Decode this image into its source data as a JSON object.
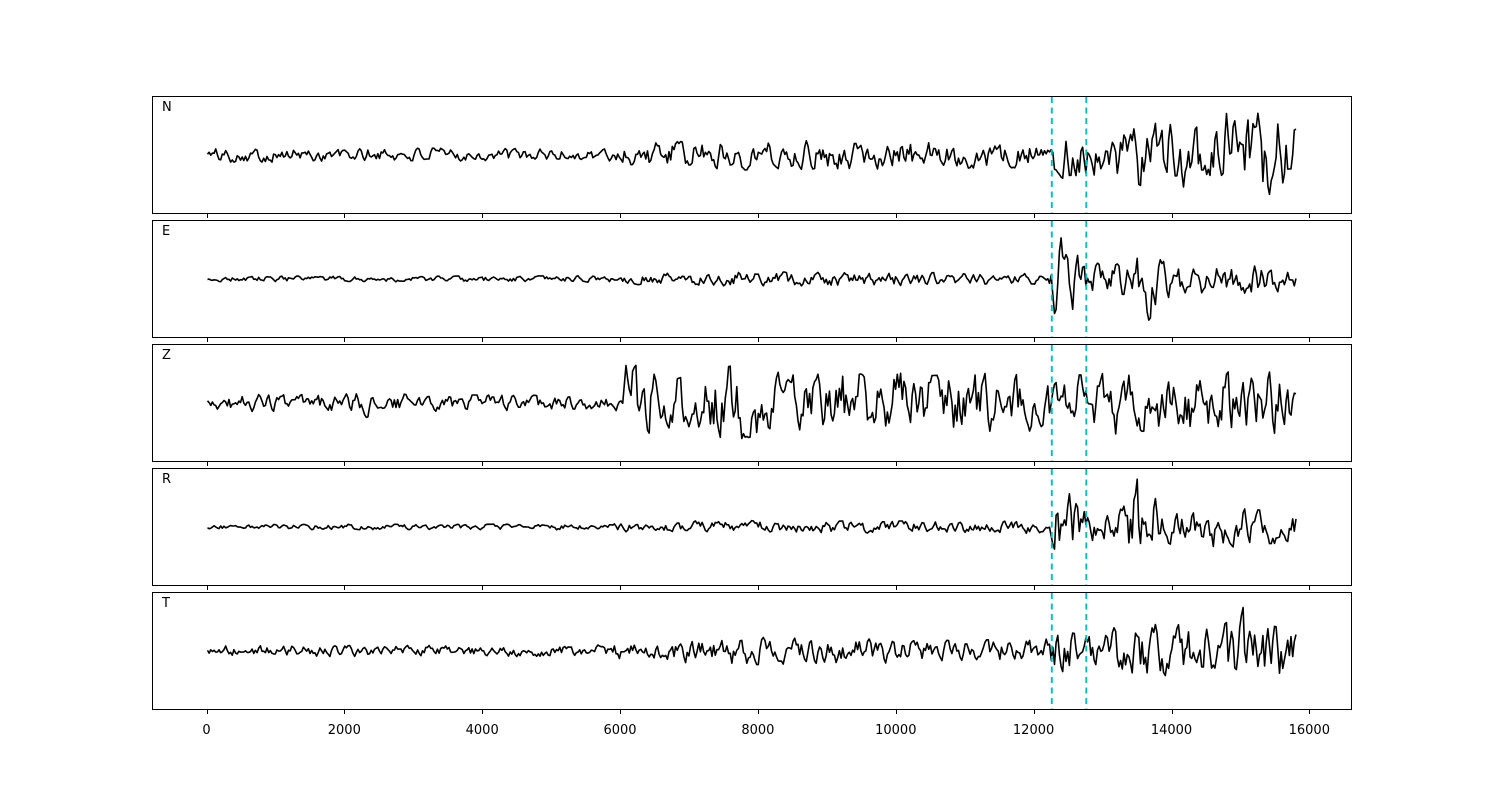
{
  "chart_data": {
    "type": "line",
    "title": "",
    "xlabel": "",
    "ylabel": "",
    "grid": false,
    "legend": "none",
    "background": "#ffffff",
    "trace_color": "#000000",
    "marker_color": "#00bfbf",
    "marker_style": "dashed",
    "x_ticks": [
      0,
      2000,
      4000,
      6000,
      8000,
      10000,
      12000,
      14000,
      16000
    ],
    "xlim": [
      -790,
      16590
    ],
    "x_start": 0,
    "x_end": 15800,
    "event_window": [
      12250,
      12750
    ],
    "panels": [
      {
        "label": "N",
        "seed": 101,
        "envelope": [
          [
            0,
            0.13
          ],
          [
            2000,
            0.13
          ],
          [
            4000,
            0.12
          ],
          [
            5700,
            0.12
          ],
          [
            6100,
            0.22
          ],
          [
            7000,
            0.25
          ],
          [
            8000,
            0.28
          ],
          [
            9000,
            0.25
          ],
          [
            10000,
            0.26
          ],
          [
            11000,
            0.24
          ],
          [
            12100,
            0.23
          ],
          [
            12300,
            0.42
          ],
          [
            12500,
            0.5
          ],
          [
            12800,
            0.38
          ],
          [
            13100,
            0.4
          ],
          [
            13500,
            0.6
          ],
          [
            13800,
            0.68
          ],
          [
            14100,
            0.58
          ],
          [
            14400,
            0.6
          ],
          [
            14700,
            0.8
          ],
          [
            15000,
            0.72
          ],
          [
            15300,
            0.88
          ],
          [
            15600,
            0.82
          ],
          [
            15800,
            0.6
          ]
        ]
      },
      {
        "label": "E",
        "seed": 202,
        "envelope": [
          [
            0,
            0.055
          ],
          [
            3000,
            0.05
          ],
          [
            5700,
            0.06
          ],
          [
            6100,
            0.1
          ],
          [
            7000,
            0.12
          ],
          [
            8000,
            0.13
          ],
          [
            9000,
            0.12
          ],
          [
            10000,
            0.12
          ],
          [
            11000,
            0.11
          ],
          [
            12200,
            0.1
          ],
          [
            12300,
            0.72
          ],
          [
            12450,
            0.78
          ],
          [
            12600,
            0.45
          ],
          [
            12800,
            0.3
          ],
          [
            13100,
            0.27
          ],
          [
            13400,
            0.32
          ],
          [
            13550,
            0.88
          ],
          [
            13700,
            0.7
          ],
          [
            13850,
            0.35
          ],
          [
            14200,
            0.3
          ],
          [
            14600,
            0.33
          ],
          [
            15000,
            0.27
          ],
          [
            15400,
            0.26
          ],
          [
            15800,
            0.2
          ]
        ]
      },
      {
        "label": "Z",
        "seed": 303,
        "envelope": [
          [
            0,
            0.16
          ],
          [
            1200,
            0.15
          ],
          [
            2200,
            0.17
          ],
          [
            2320,
            0.34
          ],
          [
            2450,
            0.17
          ],
          [
            3500,
            0.15
          ],
          [
            4800,
            0.14
          ],
          [
            5600,
            0.13
          ],
          [
            5980,
            0.14
          ],
          [
            6060,
            0.95
          ],
          [
            6200,
            0.7
          ],
          [
            6600,
            0.52
          ],
          [
            7200,
            0.55
          ],
          [
            7600,
            0.68
          ],
          [
            8100,
            0.58
          ],
          [
            8700,
            0.52
          ],
          [
            9300,
            0.55
          ],
          [
            9900,
            0.56
          ],
          [
            10500,
            0.5
          ],
          [
            11100,
            0.55
          ],
          [
            11700,
            0.52
          ],
          [
            12300,
            0.5
          ],
          [
            12800,
            0.52
          ],
          [
            13300,
            0.58
          ],
          [
            13700,
            0.62
          ],
          [
            14200,
            0.55
          ],
          [
            14700,
            0.56
          ],
          [
            15200,
            0.6
          ],
          [
            15500,
            0.55
          ],
          [
            15800,
            0.45
          ]
        ]
      },
      {
        "label": "R",
        "seed": 404,
        "envelope": [
          [
            0,
            0.05
          ],
          [
            3000,
            0.05
          ],
          [
            5700,
            0.055
          ],
          [
            6100,
            0.09
          ],
          [
            7000,
            0.11
          ],
          [
            8000,
            0.12
          ],
          [
            9000,
            0.11
          ],
          [
            10000,
            0.11
          ],
          [
            11000,
            0.1
          ],
          [
            12200,
            0.12
          ],
          [
            12320,
            0.75
          ],
          [
            12480,
            0.8
          ],
          [
            12650,
            0.42
          ],
          [
            12900,
            0.28
          ],
          [
            13200,
            0.3
          ],
          [
            13500,
            0.9
          ],
          [
            13650,
            0.78
          ],
          [
            13850,
            0.36
          ],
          [
            14200,
            0.34
          ],
          [
            14700,
            0.4
          ],
          [
            15100,
            0.32
          ],
          [
            15500,
            0.3
          ],
          [
            15800,
            0.24
          ]
        ]
      },
      {
        "label": "T",
        "seed": 505,
        "envelope": [
          [
            0,
            0.1
          ],
          [
            2000,
            0.1
          ],
          [
            4000,
            0.1
          ],
          [
            5700,
            0.11
          ],
          [
            6100,
            0.17
          ],
          [
            7000,
            0.22
          ],
          [
            8000,
            0.25
          ],
          [
            9000,
            0.22
          ],
          [
            10000,
            0.22
          ],
          [
            11000,
            0.2
          ],
          [
            12100,
            0.22
          ],
          [
            12300,
            0.38
          ],
          [
            12500,
            0.48
          ],
          [
            12800,
            0.4
          ],
          [
            13100,
            0.42
          ],
          [
            13500,
            0.46
          ],
          [
            13900,
            0.5
          ],
          [
            14300,
            0.46
          ],
          [
            14700,
            0.55
          ],
          [
            15000,
            0.82
          ],
          [
            15250,
            0.58
          ],
          [
            15550,
            0.65
          ],
          [
            15800,
            0.38
          ]
        ]
      }
    ]
  }
}
